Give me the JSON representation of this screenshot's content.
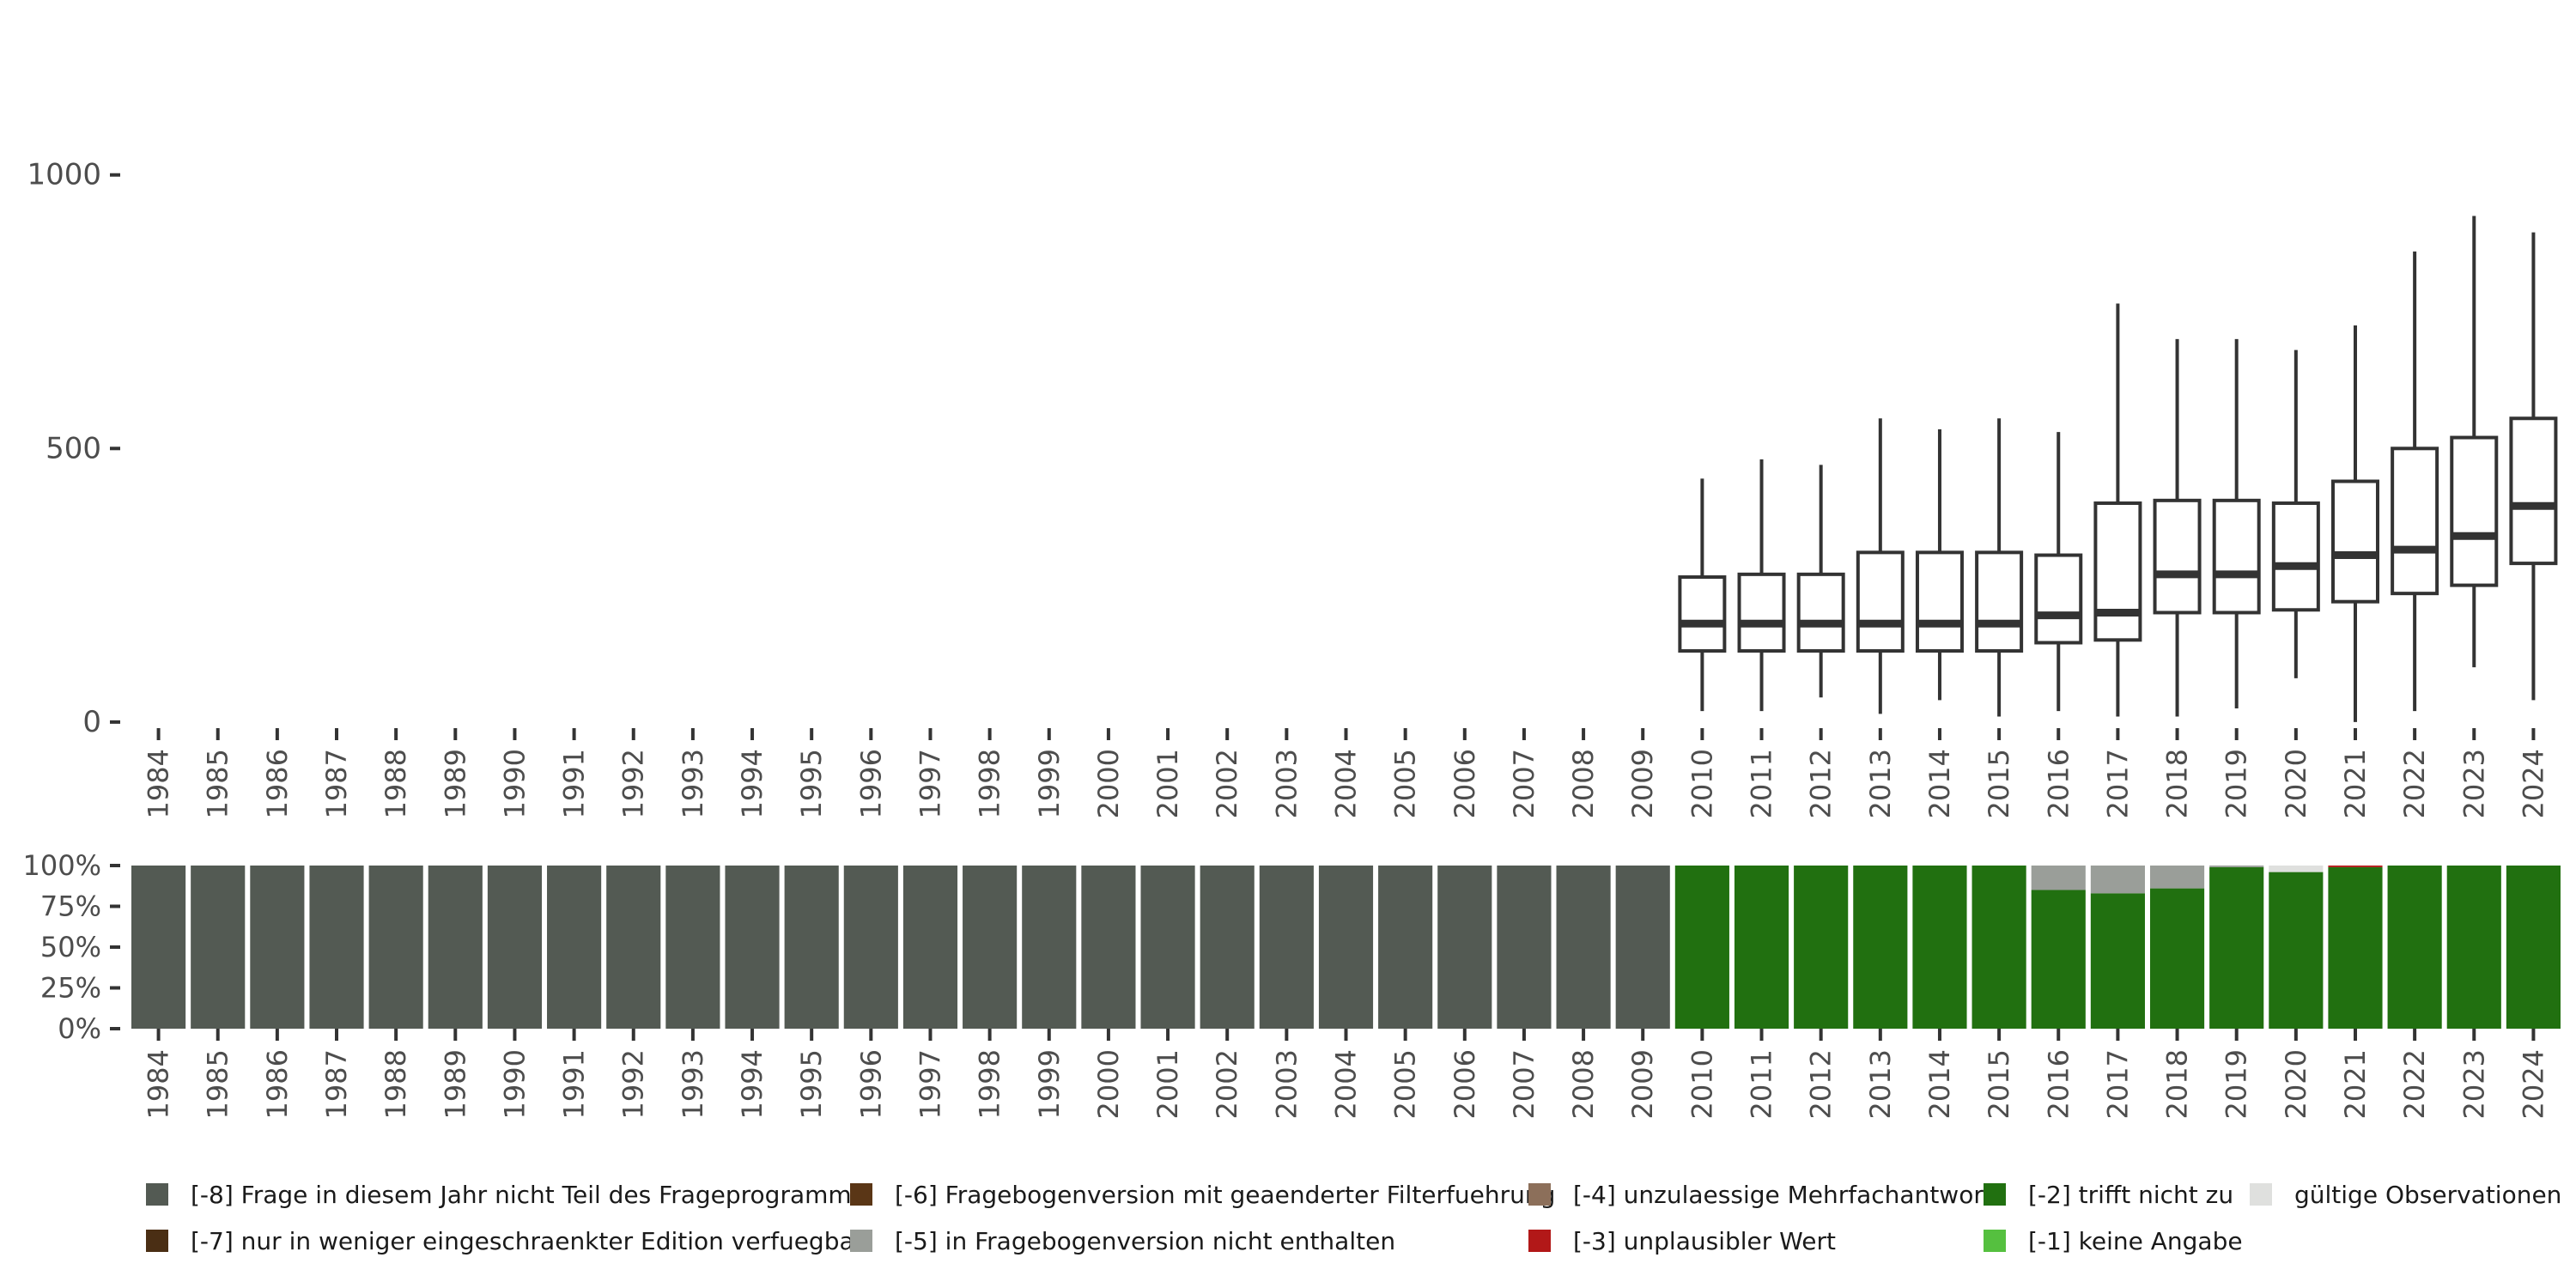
{
  "chart_data": [
    {
      "type": "boxplot",
      "title": "",
      "xlabel": "",
      "ylabel": "",
      "ylim": [
        -30,
        1100
      ],
      "yticks": [
        0,
        500,
        1000
      ],
      "categories": [
        "1984",
        "1985",
        "1986",
        "1987",
        "1988",
        "1989",
        "1990",
        "1991",
        "1992",
        "1993",
        "1994",
        "1995",
        "1996",
        "1997",
        "1998",
        "1999",
        "2000",
        "2001",
        "2002",
        "2003",
        "2004",
        "2005",
        "2006",
        "2007",
        "2008",
        "2009",
        "2010",
        "2011",
        "2012",
        "2013",
        "2014",
        "2015",
        "2016",
        "2017",
        "2018",
        "2019",
        "2020",
        "2021",
        "2022",
        "2023",
        "2024"
      ],
      "boxes": [
        {
          "year": "2010",
          "whisker_low": 20,
          "q1": 130,
          "median": 180,
          "q3": 265,
          "whisker_high": 445
        },
        {
          "year": "2011",
          "whisker_low": 20,
          "q1": 130,
          "median": 180,
          "q3": 270,
          "whisker_high": 480
        },
        {
          "year": "2012",
          "whisker_low": 45,
          "q1": 130,
          "median": 180,
          "q3": 270,
          "whisker_high": 470
        },
        {
          "year": "2013",
          "whisker_low": 15,
          "q1": 130,
          "median": 180,
          "q3": 310,
          "whisker_high": 555
        },
        {
          "year": "2014",
          "whisker_low": 40,
          "q1": 130,
          "median": 180,
          "q3": 310,
          "whisker_high": 535
        },
        {
          "year": "2015",
          "whisker_low": 10,
          "q1": 130,
          "median": 180,
          "q3": 310,
          "whisker_high": 555
        },
        {
          "year": "2016",
          "whisker_low": 20,
          "q1": 145,
          "median": 195,
          "q3": 305,
          "whisker_high": 530
        },
        {
          "year": "2017",
          "whisker_low": 10,
          "q1": 150,
          "median": 200,
          "q3": 400,
          "whisker_high": 765
        },
        {
          "year": "2018",
          "whisker_low": 10,
          "q1": 200,
          "median": 270,
          "q3": 405,
          "whisker_high": 700
        },
        {
          "year": "2019",
          "whisker_low": 25,
          "q1": 200,
          "median": 270,
          "q3": 405,
          "whisker_high": 700
        },
        {
          "year": "2020",
          "whisker_low": 80,
          "q1": 205,
          "median": 285,
          "q3": 400,
          "whisker_high": 680
        },
        {
          "year": "2021",
          "whisker_low": 0,
          "q1": 220,
          "median": 305,
          "q3": 440,
          "whisker_high": 725
        },
        {
          "year": "2022",
          "whisker_low": 20,
          "q1": 235,
          "median": 315,
          "q3": 500,
          "whisker_high": 860
        },
        {
          "year": "2023",
          "whisker_low": 100,
          "q1": 250,
          "median": 340,
          "q3": 520,
          "whisker_high": 925
        },
        {
          "year": "2024",
          "whisker_low": 40,
          "q1": 290,
          "median": 395,
          "q3": 555,
          "whisker_high": 895
        }
      ]
    },
    {
      "type": "stacked_bar",
      "title": "",
      "xlabel": "",
      "ylabel": "",
      "ylim": [
        0,
        100
      ],
      "yticks": [
        0,
        25,
        50,
        75,
        100
      ],
      "ytick_labels": [
        "0%",
        "25%",
        "50%",
        "75%",
        "100%"
      ],
      "categories": [
        "1984",
        "1985",
        "1986",
        "1987",
        "1988",
        "1989",
        "1990",
        "1991",
        "1992",
        "1993",
        "1994",
        "1995",
        "1996",
        "1997",
        "1998",
        "1999",
        "2000",
        "2001",
        "2002",
        "2003",
        "2004",
        "2005",
        "2006",
        "2007",
        "2008",
        "2009",
        "2010",
        "2011",
        "2012",
        "2013",
        "2014",
        "2015",
        "2016",
        "2017",
        "2018",
        "2019",
        "2020",
        "2021",
        "2022",
        "2023",
        "2024"
      ],
      "series": [
        {
          "name": "[-8] Frage in diesem Jahr nicht Teil des Frageprogramms",
          "color": "#535a53",
          "values": [
            100,
            100,
            100,
            100,
            100,
            100,
            100,
            100,
            100,
            100,
            100,
            100,
            100,
            100,
            100,
            100,
            100,
            100,
            100,
            100,
            100,
            100,
            100,
            100,
            100,
            100,
            0,
            0,
            0,
            0,
            0,
            0,
            0,
            0,
            0,
            0,
            0,
            0,
            0,
            0,
            0
          ]
        },
        {
          "name": "[-2] trifft nicht zu",
          "color": "#217010",
          "values": [
            0,
            0,
            0,
            0,
            0,
            0,
            0,
            0,
            0,
            0,
            0,
            0,
            0,
            0,
            0,
            0,
            0,
            0,
            0,
            0,
            0,
            0,
            0,
            0,
            0,
            0,
            100,
            100,
            100,
            100,
            100,
            100,
            85,
            83,
            86,
            99,
            96,
            99,
            100,
            100,
            100
          ]
        },
        {
          "name": "[-3] unplausibler Wert",
          "color": "#b21818",
          "values": [
            0,
            0,
            0,
            0,
            0,
            0,
            0,
            0,
            0,
            0,
            0,
            0,
            0,
            0,
            0,
            0,
            0,
            0,
            0,
            0,
            0,
            0,
            0,
            0,
            0,
            0,
            0,
            0,
            0,
            0,
            0,
            0,
            0,
            0,
            0,
            0,
            0,
            1,
            0,
            0,
            0
          ]
        },
        {
          "name": "[-5] in Fragebogenversion nicht enthalten",
          "color": "#9a9e99",
          "values": [
            0,
            0,
            0,
            0,
            0,
            0,
            0,
            0,
            0,
            0,
            0,
            0,
            0,
            0,
            0,
            0,
            0,
            0,
            0,
            0,
            0,
            0,
            0,
            0,
            0,
            0,
            0,
            0,
            0,
            0,
            0,
            0,
            15,
            17,
            14,
            1,
            0,
            0,
            0,
            0,
            0
          ]
        },
        {
          "name": "gültige Observationen",
          "color": "#dfe0de",
          "values": [
            0,
            0,
            0,
            0,
            0,
            0,
            0,
            0,
            0,
            0,
            0,
            0,
            0,
            0,
            0,
            0,
            0,
            0,
            0,
            0,
            0,
            0,
            0,
            0,
            0,
            0,
            0,
            0,
            0,
            0,
            0,
            0,
            0,
            0,
            0,
            0,
            4,
            0,
            0,
            0,
            0
          ]
        }
      ]
    }
  ],
  "legend": {
    "items": [
      {
        "label": "[-8] Frage in diesem Jahr nicht Teil des Frageprogramms",
        "color": "#535a53"
      },
      {
        "label": "[-7] nur in weniger eingeschraenkter Edition verfuegbar",
        "color": "#4a2e14"
      },
      {
        "label": "[-6] Fragebogenversion mit geaenderter Filterfuehrung",
        "color": "#5a3616"
      },
      {
        "label": "[-5] in Fragebogenversion nicht enthalten",
        "color": "#9a9e99"
      },
      {
        "label": "[-4] unzulaessige Mehrfachantwort",
        "color": "#8c6f5a"
      },
      {
        "label": "[-3] unplausibler Wert",
        "color": "#b21818"
      },
      {
        "label": "[-2] trifft nicht zu",
        "color": "#217010"
      },
      {
        "label": "[-1] keine Angabe",
        "color": "#55c03f"
      },
      {
        "label": "gültige Observationen",
        "color": "#dfe0de"
      }
    ]
  }
}
